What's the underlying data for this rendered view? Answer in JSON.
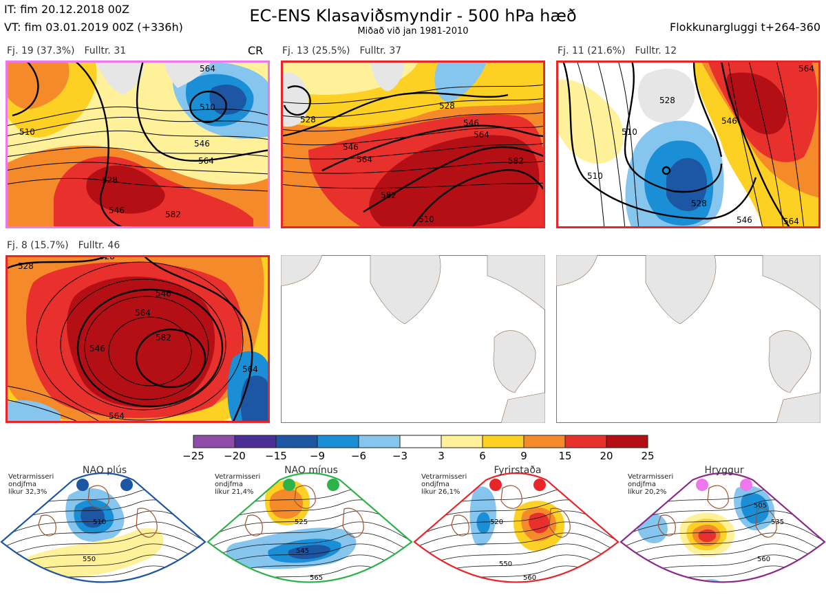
{
  "header": {
    "it": "IT: fim 20.12.2018 00Z",
    "vt": "VT: fim 03.01.2019 00Z  (+336h)",
    "title": "EC-ENS Klasaviðsmyndir - 500 hPa hæð",
    "subtitle": "Miðað við jan 1981-2010",
    "window": "Flokkunargluggi t+264-360"
  },
  "panels": [
    {
      "cluster": "Fj. 19 (37.3%)",
      "members": "Fulltr. 31",
      "tag": "CR",
      "border": "#ee77ee",
      "contours": [
        "510",
        "528",
        "546",
        "564",
        "582",
        "510",
        "546",
        "564",
        "528",
        "546"
      ]
    },
    {
      "cluster": "Fj. 13 (25.5%)",
      "members": "Fulltr. 37",
      "tag": "",
      "border": "#e8262a",
      "contours": [
        "528",
        "546",
        "564",
        "582",
        "510",
        "528",
        "546",
        "564",
        "582"
      ]
    },
    {
      "cluster": "Fj. 11 (21.6%)",
      "members": "Fulltr. 12",
      "tag": "",
      "border": "#e8262a",
      "contours": [
        "510",
        "528",
        "546",
        "564",
        "510",
        "528",
        "546",
        "564"
      ]
    },
    {
      "cluster": "Fj. 8 (15.7%)",
      "members": "Fulltr. 46",
      "tag": "",
      "border": "#e8262a",
      "contours": [
        "528",
        "528",
        "546",
        "564",
        "582",
        "546",
        "564",
        "564"
      ]
    }
  ],
  "colorbar": {
    "labels": [
      "-25",
      "-20",
      "-15",
      "-9",
      "-6",
      "-3",
      "3",
      "6",
      "9",
      "15",
      "20",
      "25"
    ],
    "colors": [
      "#8d4da8",
      "#4a2e96",
      "#1d56a3",
      "#1a8fd6",
      "#86c5ee",
      "#ffffff",
      "#fff19a",
      "#fdd024",
      "#f58a2a",
      "#e8302d",
      "#b30f15"
    ]
  },
  "regimes": [
    {
      "name": "NAO plús",
      "note": [
        "Vetrarmisseri",
        "ondjfma",
        "líkur 32,3%"
      ],
      "color": "#1d56a3",
      "dot": "#1d56a3",
      "contours": [
        "510",
        "550"
      ]
    },
    {
      "name": "NAO mínus",
      "note": [
        "Vetrarmisseri",
        "ondjfma",
        "líkur 21,4%"
      ],
      "color": "#2db24a",
      "dot": "#2db24a",
      "contours": [
        "525",
        "545",
        "565"
      ]
    },
    {
      "name": "Fyrirstaða",
      "note": [
        "Vetrarmisseri",
        "ondjfma",
        "líkur 26,1%"
      ],
      "color": "#e8262a",
      "dot": "#e8262a",
      "contours": [
        "520",
        "550",
        "560"
      ]
    },
    {
      "name": "Hryggur",
      "note": [
        "Vetrarmisseri",
        "ondjfma",
        "líkur 20,2%"
      ],
      "color": "#8a2a8a",
      "dot": "#ee77ee",
      "contours": [
        "505",
        "535",
        "560"
      ]
    }
  ]
}
